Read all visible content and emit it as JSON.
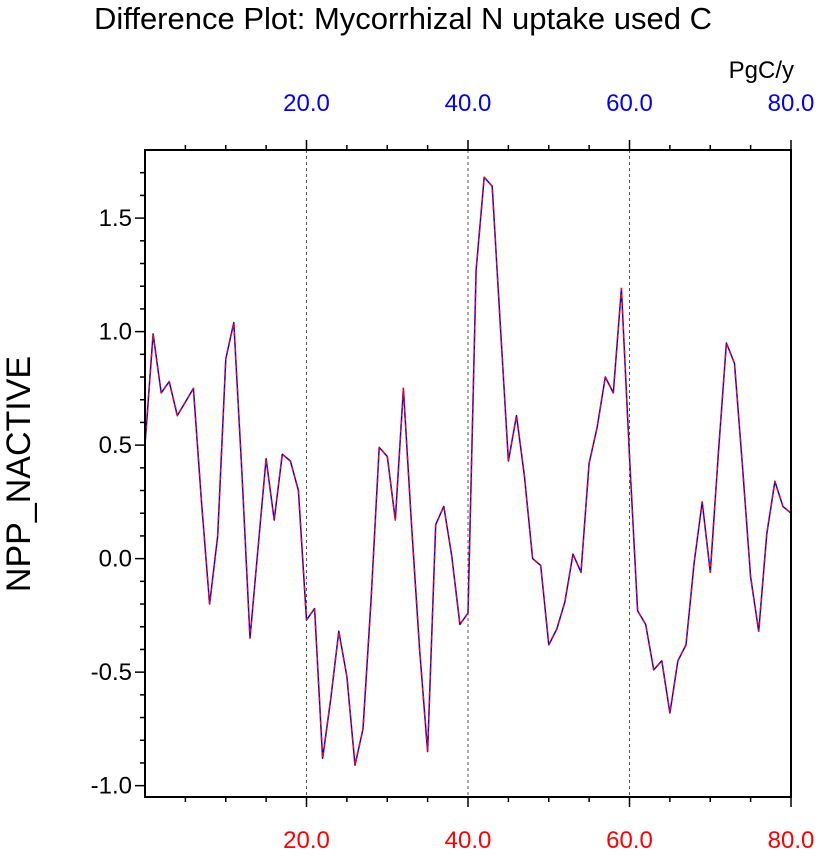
{
  "chart_data": {
    "type": "line",
    "title": "Difference Plot: Mycorrhizal N uptake used C",
    "ylabel": "NPP_NACTIVE",
    "top_axis_units": "PgC/y",
    "xlim": [
      0,
      80
    ],
    "ylim": [
      -1.05,
      1.8
    ],
    "x_ticks": [
      20,
      40,
      60,
      80
    ],
    "x_tick_labels": [
      "20.0",
      "40.0",
      "60.0",
      "80.0"
    ],
    "y_ticks": [
      -1.0,
      -0.5,
      0.0,
      0.5,
      1.0,
      1.5
    ],
    "y_tick_labels": [
      "-1.0",
      "-0.5",
      "0.0",
      "0.5",
      "1.0",
      "1.5"
    ],
    "top_tick_color": "#0000ff",
    "bottom_tick_color": "#ff0000",
    "grid_color": "#555555",
    "series": [
      {
        "name": "series-solid",
        "color": "#0000ff",
        "style": "solid",
        "x": [
          0,
          1,
          2,
          3,
          4,
          5,
          6,
          7,
          8,
          9,
          10,
          11,
          12,
          13,
          14,
          15,
          16,
          17,
          18,
          19,
          20,
          21,
          22,
          23,
          24,
          25,
          26,
          27,
          28,
          29,
          30,
          31,
          32,
          33,
          34,
          35,
          36,
          37,
          38,
          39,
          40,
          41,
          42,
          43,
          44,
          45,
          46,
          47,
          48,
          49,
          50,
          51,
          52,
          53,
          54,
          55,
          56,
          57,
          58,
          59,
          60,
          61,
          62,
          63,
          64,
          65,
          66,
          67,
          68,
          69,
          70,
          71,
          72,
          73,
          74,
          75,
          76,
          77,
          78,
          79,
          80
        ],
        "y": [
          0.5,
          0.99,
          0.73,
          0.78,
          0.63,
          0.69,
          0.75,
          0.25,
          -0.2,
          0.1,
          0.88,
          1.04,
          0.38,
          -0.35,
          0.05,
          0.44,
          0.17,
          0.46,
          0.43,
          0.3,
          -0.27,
          -0.22,
          -0.88,
          -0.62,
          -0.32,
          -0.52,
          -0.91,
          -0.75,
          -0.18,
          0.49,
          0.45,
          0.17,
          0.75,
          0.15,
          -0.4,
          -0.85,
          0.15,
          0.23,
          0.01,
          -0.29,
          -0.24,
          1.27,
          1.68,
          1.64,
          1.03,
          0.43,
          0.63,
          0.36,
          0.0,
          -0.03,
          -0.38,
          -0.31,
          -0.19,
          0.02,
          -0.06,
          0.42,
          0.58,
          0.8,
          0.73,
          1.19,
          0.45,
          -0.23,
          -0.29,
          -0.49,
          -0.45,
          -0.68,
          -0.45,
          -0.38,
          -0.02,
          0.25,
          -0.06,
          0.46,
          0.95,
          0.86,
          0.4,
          -0.08,
          -0.32,
          0.11,
          0.34,
          0.23,
          0.2
        ]
      },
      {
        "name": "series-dashed",
        "color": "#ff0000",
        "style": "dashed",
        "x": [
          0,
          1,
          2,
          3,
          4,
          5,
          6,
          7,
          8,
          9,
          10,
          11,
          12,
          13,
          14,
          15,
          16,
          17,
          18,
          19,
          20,
          21,
          22,
          23,
          24,
          25,
          26,
          27,
          28,
          29,
          30,
          31,
          32,
          33,
          34,
          35,
          36,
          37,
          38,
          39,
          40,
          41,
          42,
          43,
          44,
          45,
          46,
          47,
          48,
          49,
          50,
          51,
          52,
          53,
          54,
          55,
          56,
          57,
          58,
          59,
          60,
          61,
          62,
          63,
          64,
          65,
          66,
          67,
          68,
          69,
          70,
          71,
          72,
          73,
          74,
          75,
          76,
          77,
          78,
          79,
          80
        ],
        "y": [
          0.5,
          0.99,
          0.73,
          0.78,
          0.63,
          0.69,
          0.75,
          0.25,
          -0.2,
          0.1,
          0.88,
          1.04,
          0.38,
          -0.35,
          0.05,
          0.44,
          0.17,
          0.46,
          0.43,
          0.3,
          -0.27,
          -0.22,
          -0.88,
          -0.62,
          -0.32,
          -0.52,
          -0.91,
          -0.75,
          -0.18,
          0.49,
          0.45,
          0.17,
          0.75,
          0.15,
          -0.4,
          -0.85,
          0.15,
          0.23,
          0.01,
          -0.29,
          -0.24,
          1.27,
          1.68,
          1.64,
          1.03,
          0.43,
          0.63,
          0.36,
          0.0,
          -0.03,
          -0.38,
          -0.31,
          -0.19,
          0.02,
          -0.06,
          0.42,
          0.58,
          0.8,
          0.73,
          1.19,
          0.45,
          -0.23,
          -0.29,
          -0.49,
          -0.45,
          -0.68,
          -0.45,
          -0.38,
          -0.02,
          0.25,
          -0.06,
          0.46,
          0.95,
          0.86,
          0.4,
          -0.08,
          -0.32,
          0.11,
          0.34,
          0.23,
          0.2
        ]
      }
    ]
  }
}
